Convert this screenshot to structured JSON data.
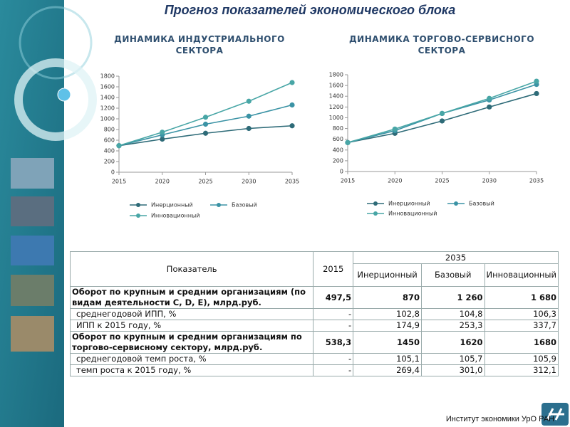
{
  "title": "Прогноз показателей экономического блока",
  "chart_data": [
    {
      "type": "line",
      "title": "ДИНАМИКА ИНДУСТРИАЛЬНОГО СЕКТОРА",
      "x": [
        2015,
        2020,
        2025,
        2030,
        2035
      ],
      "xlim": [
        2015,
        2035
      ],
      "xticks": [
        2015,
        2020,
        2025,
        2030,
        2035
      ],
      "ylim": [
        0,
        1800
      ],
      "yticks": [
        0,
        200,
        400,
        600,
        800,
        1000,
        1200,
        1400,
        1600,
        1800
      ],
      "series": [
        {
          "name": "Инерционный",
          "color": "#2e6b78",
          "values": [
            497.5,
            620,
            730,
            820,
            870
          ]
        },
        {
          "name": "Базовый",
          "color": "#3b93a5",
          "values": [
            497.5,
            700,
            900,
            1050,
            1260
          ]
        },
        {
          "name": "Инновационный",
          "color": "#48a6a6",
          "values": [
            497.5,
            750,
            1030,
            1330,
            1680
          ]
        }
      ]
    },
    {
      "type": "line",
      "title": "ДИНАМИКА ТОРГОВО-СЕРВИСНОГО СЕКТОРА",
      "x": [
        2015,
        2020,
        2025,
        2030,
        2035
      ],
      "xlim": [
        2015,
        2035
      ],
      "xticks": [
        2015,
        2020,
        2025,
        2030,
        2035
      ],
      "ylim": [
        0,
        1800
      ],
      "yticks": [
        0,
        200,
        400,
        600,
        800,
        1000,
        1200,
        1400,
        1600,
        1800
      ],
      "series": [
        {
          "name": "Инерционный",
          "color": "#2e6b78",
          "values": [
            538.3,
            710,
            940,
            1200,
            1450
          ]
        },
        {
          "name": "Базовый",
          "color": "#3b93a5",
          "values": [
            538.3,
            760,
            1080,
            1330,
            1620
          ]
        },
        {
          "name": "Инновационный",
          "color": "#48a6a6",
          "values": [
            538.3,
            790,
            1080,
            1360,
            1680
          ]
        }
      ]
    }
  ],
  "table": {
    "header": [
      "Показатель",
      "2015",
      "2035"
    ],
    "subheader": [
      "Инерционный",
      "Базовый",
      "Инновационный"
    ],
    "rows": [
      [
        "Оборот по крупным и средним организациям (по видам деятельности C, D, E), млрд.руб.",
        "497,5",
        "870",
        "1 260",
        "1 680"
      ],
      [
        "среднегодовой ИПП, %",
        "-",
        "102,8",
        "104,8",
        "106,3"
      ],
      [
        "ИПП к 2015 году, %",
        "-",
        "174,9",
        "253,3",
        "337,7"
      ],
      [
        "Оборот по крупным и средним организациям по торгово-сервисному сектору, млрд.руб.",
        "538,3",
        "1450",
        "1620",
        "1680"
      ],
      [
        "среднегодовой темп роста, %",
        "-",
        "105,1",
        "105,7",
        "105,9"
      ],
      [
        "темп роста к 2015 году, %",
        "-",
        "269,4",
        "301,0",
        "312,1"
      ]
    ]
  },
  "footer": "Институт экономики УрО РАН"
}
